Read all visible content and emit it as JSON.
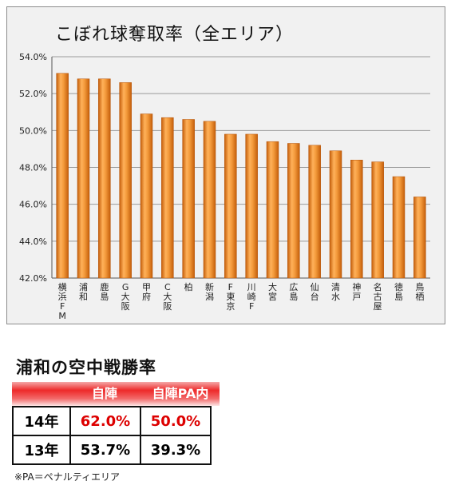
{
  "chart_data": {
    "type": "bar",
    "title": "こぼれ球奪取率（全エリア）",
    "categories": [
      "横浜FM",
      "浦和",
      "鹿島",
      "G大阪",
      "甲府",
      "C大阪",
      "柏",
      "新潟",
      "F東京",
      "川崎F",
      "大宮",
      "広島",
      "仙台",
      "清水",
      "神戸",
      "名古屋",
      "徳島",
      "鳥栖"
    ],
    "category_labels": [
      "横浜FM",
      "浦和",
      "鹿島",
      "G大阪",
      "甲府",
      "C大阪",
      "柏",
      "新潟",
      "F東京",
      "川崎F",
      "大宮",
      "広島",
      "仙台",
      "清水",
      "神戸",
      "名古屋",
      "徳島",
      "鳥栖"
    ],
    "values": [
      53.1,
      52.8,
      52.8,
      52.6,
      50.9,
      50.7,
      50.6,
      50.5,
      49.8,
      49.8,
      49.4,
      49.3,
      49.2,
      48.9,
      48.4,
      48.3,
      47.5,
      46.4
    ],
    "ylim": [
      42,
      54
    ],
    "yticks": [
      "42.0%",
      "44.0%",
      "46.0%",
      "48.0%",
      "50.0%",
      "52.0%",
      "54.0%"
    ],
    "grid": true,
    "bar_color": "#f08a1f"
  },
  "section2": {
    "title": "浦和の空中戦勝率",
    "headers": [
      "自陣",
      "自陣PA内"
    ],
    "rows": [
      {
        "year": "14年",
        "v1": "62.0%",
        "v2": "50.0%"
      },
      {
        "year": "13年",
        "v1": "53.7%",
        "v2": "39.3%"
      }
    ],
    "highlight_color": "#dd0000"
  },
  "footnote": "※PA＝ペナルティエリア"
}
